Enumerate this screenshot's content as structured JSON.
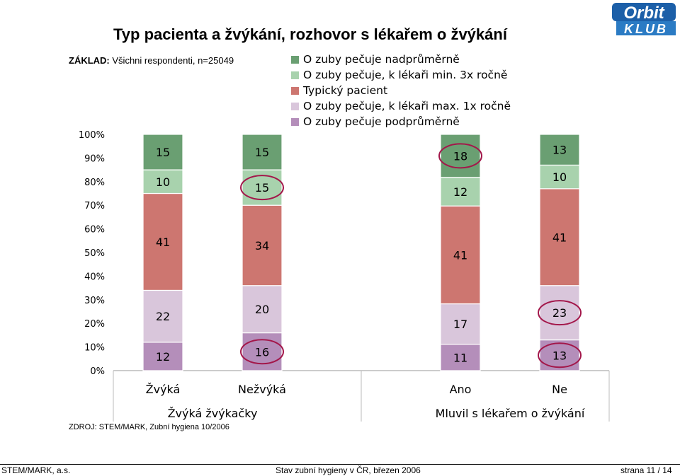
{
  "title": "Typ pacienta a žvýkání, rozhovor s lékařem o žvýkání",
  "basis": {
    "label": "ZÁKLAD:",
    "text": "Všichni respondenti, n=25049"
  },
  "logo": {
    "top": "Orbit",
    "bottom": "KLUB"
  },
  "source": "ZDROJ: STEM/MARK, Zubní hygiena  10/2006",
  "footer": {
    "left": "STEM/MARK, a.s.",
    "center": "Stav zubní hygieny v ČR, březen 2006",
    "right": "strana 11 / 14"
  },
  "colors": {
    "O zuby pečuje nadprůměrně": "#6a9f72",
    "O zuby pečuje, k lékaři min. 3x ročně": "#a8d2ad",
    "Typický pacient": "#cd7670",
    "O zuby pečuje, k lékaři max. 1x ročně": "#d9c6db",
    "O zuby pečuje podprůměrně": "#b48eba",
    "highlight": "#a3174a"
  },
  "chart_data": {
    "type": "bar",
    "stacked": true,
    "percent_axis": true,
    "ylim": [
      0,
      100
    ],
    "yticks": [
      "0%",
      "10%",
      "20%",
      "30%",
      "40%",
      "50%",
      "60%",
      "70%",
      "80%",
      "90%",
      "100%"
    ],
    "categories": [
      "Žvýká",
      "Nežvýká",
      "Ano",
      "Ne"
    ],
    "groups": [
      {
        "label": "Žvýká žvýkačky",
        "categories": [
          "Žvýká",
          "Nežvýká"
        ]
      },
      {
        "label": "Mluvil s lékařem o žvýkání",
        "categories": [
          "Ano",
          "Ne"
        ]
      }
    ],
    "legend_position": "top",
    "series": [
      {
        "name": "O zuby pečuje podprůměrně",
        "values": [
          12,
          16,
          11,
          13
        ]
      },
      {
        "name": "O zuby pečuje, k lékaři max. 1x ročně",
        "values": [
          22,
          20,
          17,
          23
        ]
      },
      {
        "name": "Typický pacient",
        "values": [
          41,
          34,
          41,
          41
        ]
      },
      {
        "name": "O zuby pečuje, k lékaři min. 3x ročně",
        "values": [
          10,
          15,
          12,
          10
        ]
      },
      {
        "name": "O zuby pečuje nadprůměrně",
        "values": [
          15,
          15,
          18,
          13
        ]
      }
    ],
    "legend_order": [
      "O zuby pečuje nadprůměrně",
      "O zuby pečuje, k lékaři min. 3x ročně",
      "Typický pacient",
      "O zuby pečuje, k lékaři max. 1x ročně",
      "O zuby pečuje podprůměrně"
    ],
    "highlighted": [
      {
        "category": "Nežvýká",
        "series": "O zuby pečuje, k lékaři min. 3x ročně"
      },
      {
        "category": "Nežvýká",
        "series": "O zuby pečuje podprůměrně"
      },
      {
        "category": "Ano",
        "series": "O zuby pečuje nadprůměrně"
      },
      {
        "category": "Ne",
        "series": "O zuby pečuje, k lékaři max. 1x ročně"
      },
      {
        "category": "Ne",
        "series": "O zuby pečuje podprůměrně"
      }
    ]
  }
}
